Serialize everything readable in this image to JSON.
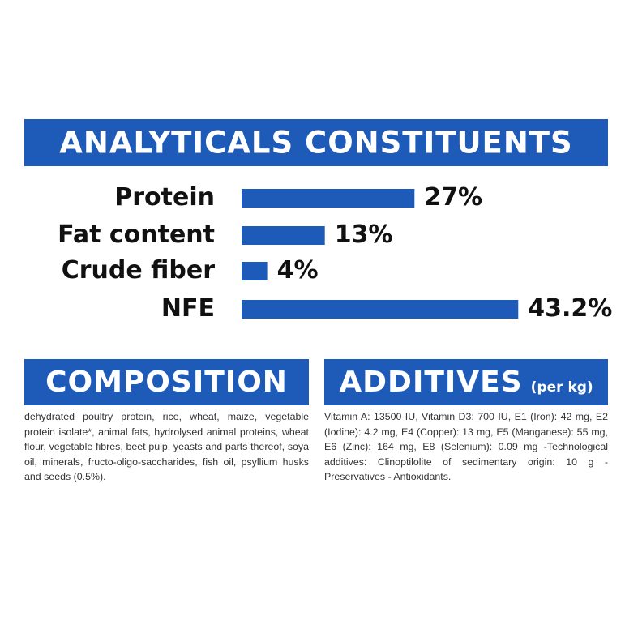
{
  "chart_data": {
    "type": "bar",
    "title": "ANALYTICALS CONSTITUENTS",
    "categories": [
      "Protein",
      "Fat content",
      "Crude fiber",
      "NFE"
    ],
    "values": [
      27,
      13,
      4,
      43.2
    ],
    "value_labels": [
      "27%",
      "13%",
      "4%",
      "43.2%"
    ],
    "color": "#1e5bb8"
  },
  "composition": {
    "title": "COMPOSITION",
    "text": "dehydrated poultry protein, rice, wheat, maize, vegetable protein isolate*, animal fats, hydrolysed animal proteins, wheat flour, vegetable fibres, beet pulp, yeasts and parts thereof, soya oil, minerals, fructo-oligo-saccharides, fish oil, psyllium husks and seeds (0.5%)."
  },
  "additives": {
    "title": "ADDITIVES",
    "subtitle": "(per kg)",
    "text": "Vitamin A: 13500 IU, Vitamin D3: 700 IU, E1 (Iron): 42 mg, E2 (Iodine): 4.2 mg, E4 (Copper): 13 mg, E5 (Manganese): 55 mg, E6 (Zinc): 164 mg, E8 (Selenium): 0.09 mg -Technological additives: Clinoptilolite of sedimentary origin: 10 g - Preservatives - Antioxidants."
  }
}
